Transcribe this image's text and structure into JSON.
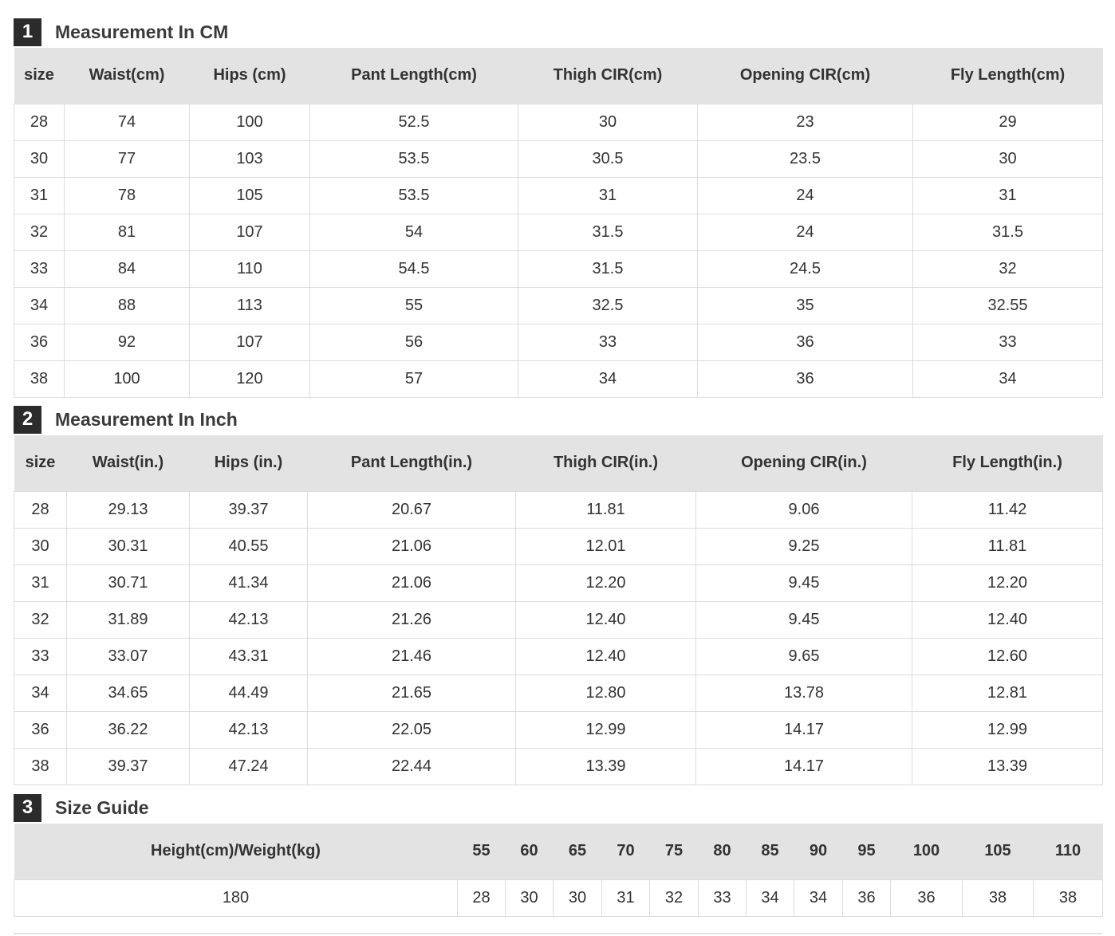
{
  "sections": [
    {
      "number": "1",
      "title": "Measurement In CM",
      "headers": [
        "size",
        "Waist(cm)",
        "Hips (cm)",
        "Pant Length(cm)",
        "Thigh CIR(cm)",
        "Opening CIR(cm)",
        "Fly Length(cm)"
      ],
      "rows": [
        [
          "28",
          "74",
          "100",
          "52.5",
          "30",
          "23",
          "29"
        ],
        [
          "30",
          "77",
          "103",
          "53.5",
          "30.5",
          "23.5",
          "30"
        ],
        [
          "31",
          "78",
          "105",
          "53.5",
          "31",
          "24",
          "31"
        ],
        [
          "32",
          "81",
          "107",
          "54",
          "31.5",
          "24",
          "31.5"
        ],
        [
          "33",
          "84",
          "110",
          "54.5",
          "31.5",
          "24.5",
          "32"
        ],
        [
          "34",
          "88",
          "113",
          "55",
          "32.5",
          "35",
          "32.55"
        ],
        [
          "36",
          "92",
          "107",
          "56",
          "33",
          "36",
          "33"
        ],
        [
          "38",
          "100",
          "120",
          "57",
          "34",
          "36",
          "34"
        ]
      ]
    },
    {
      "number": "2",
      "title": "Measurement In Inch",
      "headers": [
        "size",
        "Waist(in.)",
        "Hips (in.)",
        "Pant Length(in.)",
        "Thigh CIR(in.)",
        "Opening CIR(in.)",
        "Fly Length(in.)"
      ],
      "rows": [
        [
          "28",
          "29.13",
          "39.37",
          "20.67",
          "11.81",
          "9.06",
          "11.42"
        ],
        [
          "30",
          "30.31",
          "40.55",
          "21.06",
          "12.01",
          "9.25",
          "11.81"
        ],
        [
          "31",
          "30.71",
          "41.34",
          "21.06",
          "12.20",
          "9.45",
          "12.20"
        ],
        [
          "32",
          "31.89",
          "42.13",
          "21.26",
          "12.40",
          "9.45",
          "12.40"
        ],
        [
          "33",
          "33.07",
          "43.31",
          "21.46",
          "12.40",
          "9.65",
          "12.60"
        ],
        [
          "34",
          "34.65",
          "44.49",
          "21.65",
          "12.80",
          "13.78",
          "12.81"
        ],
        [
          "36",
          "36.22",
          "42.13",
          "22.05",
          "12.99",
          "14.17",
          "12.99"
        ],
        [
          "38",
          "39.37",
          "47.24",
          "22.44",
          "13.39",
          "14.17",
          "13.39"
        ]
      ]
    },
    {
      "number": "3",
      "title": "Size Guide",
      "headers": [
        "Height(cm)/Weight(kg)",
        "55",
        "60",
        "65",
        "70",
        "75",
        "80",
        "85",
        "90",
        "95",
        "100",
        "105",
        "110"
      ],
      "rows": [
        [
          "180",
          "28",
          "30",
          "30",
          "31",
          "32",
          "33",
          "34",
          "34",
          "36",
          "36",
          "38",
          "38"
        ]
      ]
    }
  ]
}
